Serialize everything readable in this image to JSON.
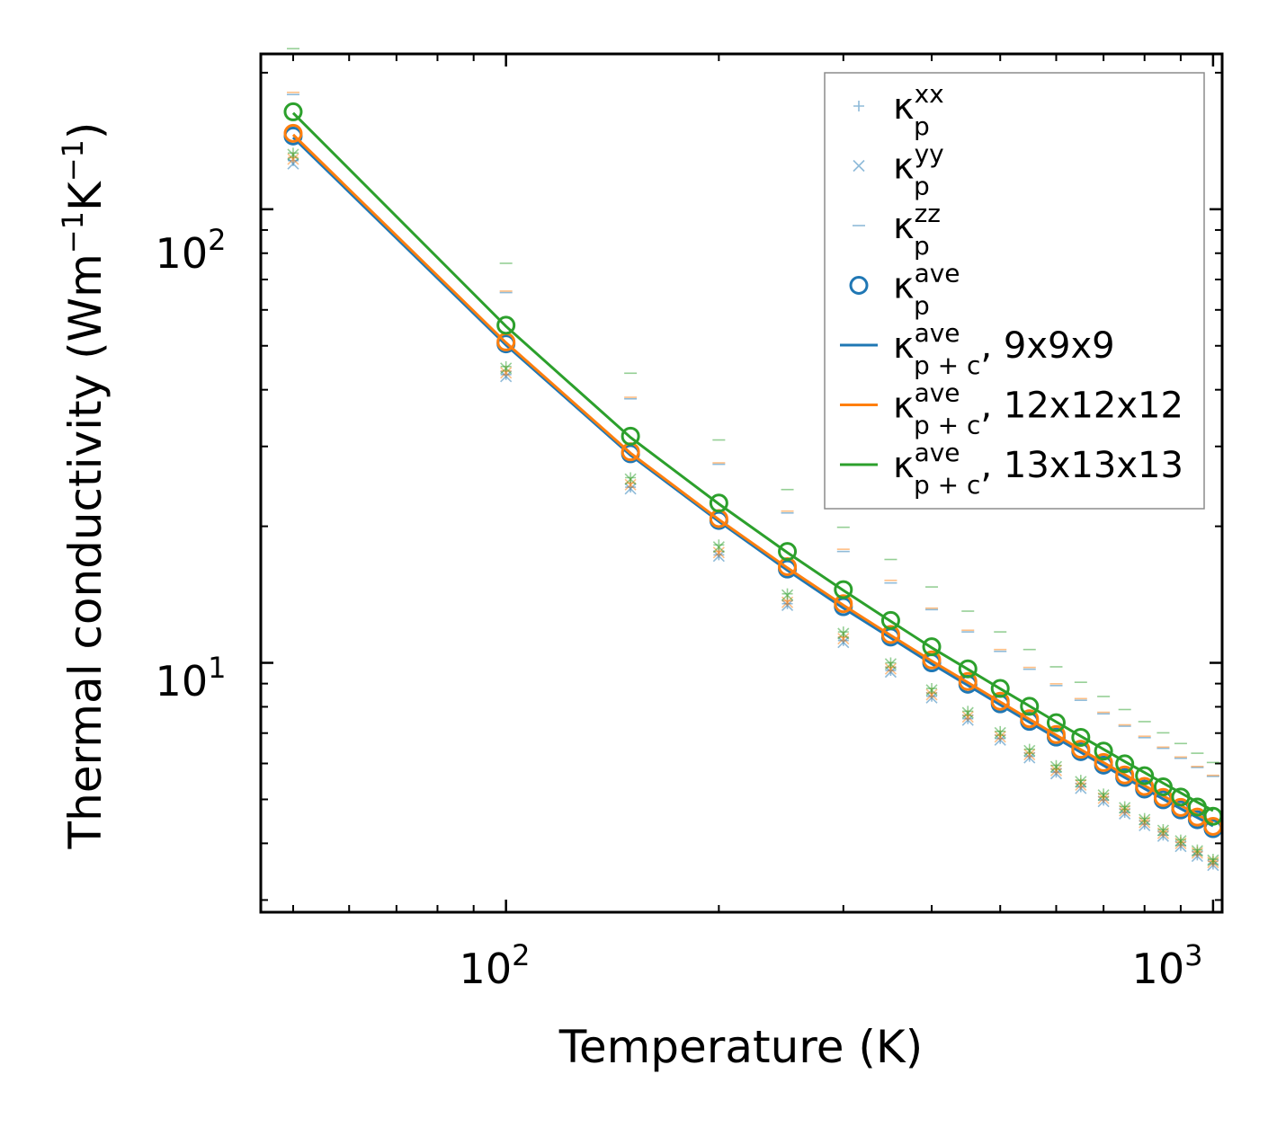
{
  "chart_data": {
    "type": "scatter",
    "xscale": "log",
    "yscale": "log",
    "xlim": [
      45,
      1030
    ],
    "ylim": [
      2.82,
      220
    ],
    "xlabel": "Temperature (K)",
    "ylabel": {
      "main": "Thermal conductivity (Wm",
      "sup1": "−1",
      "mid": "K",
      "sup2": "−1",
      "end": ")"
    },
    "xticks": [
      {
        "base": "10",
        "exp": "2"
      },
      {
        "base": "10",
        "exp": "3"
      }
    ],
    "yticks": [
      {
        "base": "10",
        "exp": "1"
      },
      {
        "base": "10",
        "exp": "2"
      }
    ],
    "x": [
      50,
      100,
      150,
      200,
      250,
      300,
      350,
      400,
      450,
      500,
      550,
      600,
      650,
      700,
      750,
      800,
      850,
      900,
      950,
      1000
    ],
    "colors": {
      "c9": "#1f77b4",
      "c12": "#ff7f0e",
      "c13": "#2ca02c",
      "legend_marker": "#1f77b4"
    },
    "series": [
      {
        "name": "9x9x9",
        "color_key": "c9",
        "kxx": [
          128,
          43.2,
          24.4,
          17.3,
          13.5,
          11.2,
          9.62,
          8.44,
          7.53,
          6.81,
          6.22,
          5.74,
          5.33,
          4.98,
          4.68,
          4.41,
          4.17,
          3.96,
          3.77,
          3.6
        ],
        "kyy": [
          126,
          42.8,
          24.2,
          17.2,
          13.4,
          11.1,
          9.55,
          8.38,
          7.48,
          6.76,
          6.18,
          5.7,
          5.29,
          4.95,
          4.65,
          4.38,
          4.15,
          3.94,
          3.75,
          3.58
        ],
        "kzz": [
          179,
          65.5,
          38.2,
          27.4,
          21.4,
          17.6,
          15.0,
          13.1,
          11.7,
          10.6,
          9.68,
          8.91,
          8.27,
          7.72,
          7.25,
          6.84,
          6.48,
          6.16,
          5.88,
          5.62
        ],
        "kave": [
          145,
          50.5,
          28.9,
          20.6,
          16.1,
          13.3,
          11.4,
          10.0,
          8.97,
          8.12,
          7.43,
          6.86,
          6.37,
          5.95,
          5.59,
          5.27,
          4.99,
          4.74,
          4.51,
          4.31
        ],
        "kpc": [
          144,
          50.2,
          28.7,
          20.5,
          16.0,
          13.2,
          11.35,
          9.95,
          8.92,
          8.08,
          7.4,
          6.83,
          6.35,
          5.94,
          5.59,
          5.28,
          5.01,
          4.77,
          4.56,
          4.37
        ]
      },
      {
        "name": "12x12x12",
        "color_key": "c12",
        "kxx": [
          130,
          44.0,
          24.9,
          17.6,
          13.7,
          11.4,
          9.78,
          8.58,
          7.65,
          6.92,
          6.32,
          5.83,
          5.41,
          5.06,
          4.75,
          4.48,
          4.24,
          4.02,
          3.83,
          3.65
        ],
        "kyy": [
          129,
          43.6,
          24.7,
          17.5,
          13.6,
          11.3,
          9.7,
          8.51,
          7.6,
          6.87,
          6.28,
          5.79,
          5.38,
          5.03,
          4.72,
          4.45,
          4.21,
          4.0,
          3.81,
          3.63
        ],
        "kzz": [
          181,
          66.0,
          38.5,
          27.6,
          21.6,
          17.8,
          15.2,
          13.2,
          11.8,
          10.7,
          9.77,
          8.99,
          8.34,
          7.78,
          7.3,
          6.89,
          6.52,
          6.2,
          5.91,
          5.65
        ],
        "kave": [
          147,
          51.0,
          29.2,
          20.8,
          16.3,
          13.5,
          11.55,
          10.15,
          9.1,
          8.23,
          7.53,
          6.95,
          6.45,
          6.03,
          5.66,
          5.34,
          5.05,
          4.8,
          4.57,
          4.36
        ],
        "kpc": [
          146,
          50.8,
          29.0,
          20.7,
          16.2,
          13.4,
          11.5,
          10.1,
          9.05,
          8.2,
          7.51,
          6.93,
          6.44,
          6.03,
          5.67,
          5.36,
          5.09,
          4.85,
          4.63,
          4.44
        ]
      },
      {
        "name": "13x13x13",
        "color_key": "c13",
        "kxx": [
          133,
          45.0,
          25.6,
          18.2,
          14.2,
          11.7,
          10.0,
          8.78,
          7.82,
          7.06,
          6.45,
          5.94,
          5.51,
          5.14,
          4.82,
          4.54,
          4.29,
          4.07,
          3.87,
          3.69
        ],
        "kyy": [
          132,
          44.6,
          25.4,
          18.0,
          14.1,
          11.6,
          9.94,
          8.71,
          7.76,
          7.01,
          6.4,
          5.9,
          5.47,
          5.11,
          4.79,
          4.51,
          4.27,
          4.05,
          3.85,
          3.67
        ],
        "kzz": [
          226,
          76.0,
          43.5,
          31.0,
          24.1,
          19.9,
          16.9,
          14.7,
          13.0,
          11.7,
          10.7,
          9.8,
          9.06,
          8.43,
          7.89,
          7.42,
          7.01,
          6.64,
          6.32,
          6.03
        ],
        "kave": [
          164,
          55.5,
          31.6,
          22.5,
          17.6,
          14.5,
          12.4,
          10.85,
          9.7,
          8.78,
          8.02,
          7.38,
          6.85,
          6.39,
          5.99,
          5.64,
          5.33,
          5.06,
          4.81,
          4.59
        ],
        "kpc": [
          163,
          55.2,
          31.4,
          22.4,
          17.5,
          14.45,
          12.35,
          10.8,
          9.68,
          8.77,
          8.03,
          7.41,
          6.89,
          6.45,
          6.06,
          5.73,
          5.43,
          5.17,
          4.93,
          4.72
        ]
      }
    ],
    "legend": {
      "position": "top-right",
      "entries": [
        {
          "kind": "plus",
          "sym": "κ",
          "sup": "xx",
          "sub": "p",
          "rest": ""
        },
        {
          "kind": "cross",
          "sym": "κ",
          "sup": "yy",
          "sub": "p",
          "rest": ""
        },
        {
          "kind": "dash",
          "sym": "κ",
          "sup": "zz",
          "sub": "p",
          "rest": ""
        },
        {
          "kind": "circle",
          "sym": "κ",
          "sup": "ave",
          "sub": "p",
          "rest": ""
        },
        {
          "kind": "line",
          "color_key": "c9",
          "sym": "κ",
          "sup": "ave",
          "sub": "p + c",
          "rest": ", 9x9x9"
        },
        {
          "kind": "line",
          "color_key": "c12",
          "sym": "κ",
          "sup": "ave",
          "sub": "p + c",
          "rest": ", 12x12x12"
        },
        {
          "kind": "line",
          "color_key": "c13",
          "sym": "κ",
          "sup": "ave",
          "sub": "p + c",
          "rest": ", 13x13x13"
        }
      ]
    }
  }
}
